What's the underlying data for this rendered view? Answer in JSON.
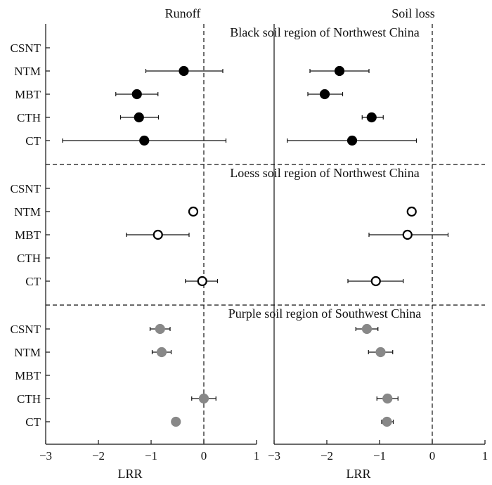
{
  "chart_data": {
    "type": "scatter",
    "subtype": "forest-plot",
    "x_axis_label": "LRR",
    "x_range": [
      -3,
      1
    ],
    "x_ticks": [
      "−3",
      "−2",
      "−1",
      "0",
      "1"
    ],
    "reference_line_x": 0,
    "panels": [
      {
        "title": "Runoff"
      },
      {
        "title": "Soil loss"
      }
    ],
    "categories": [
      "CSNT",
      "NTM",
      "MBT",
      "CTH",
      "CT"
    ],
    "regions": [
      {
        "name": "Black soil region of Northwest China",
        "marker_fill": "#000000",
        "marker_stroke": "#000000",
        "points": {
          "runoff": [
            {
              "category": "NTM",
              "mean": -0.38,
              "low": -1.1,
              "high": 0.36
            },
            {
              "category": "MBT",
              "mean": -1.27,
              "low": -1.67,
              "high": -0.87
            },
            {
              "category": "CTH",
              "mean": -1.23,
              "low": -1.58,
              "high": -0.86
            },
            {
              "category": "CT",
              "mean": -1.13,
              "low": -2.68,
              "high": 0.42
            }
          ],
          "soil_loss": [
            {
              "category": "NTM",
              "mean": -1.76,
              "low": -2.32,
              "high": -1.2
            },
            {
              "category": "MBT",
              "mean": -2.04,
              "low": -2.36,
              "high": -1.7
            },
            {
              "category": "CTH",
              "mean": -1.15,
              "low": -1.33,
              "high": -0.93
            },
            {
              "category": "CT",
              "mean": -1.52,
              "low": -2.75,
              "high": -0.3
            }
          ]
        }
      },
      {
        "name": "Loess soil region of Northwest China",
        "marker_fill": "#ffffff",
        "marker_stroke": "#000000",
        "points": {
          "runoff": [
            {
              "category": "NTM",
              "mean": -0.2,
              "low": -0.25,
              "high": -0.15
            },
            {
              "category": "MBT",
              "mean": -0.87,
              "low": -1.47,
              "high": -0.28
            },
            {
              "category": "CT",
              "mean": -0.03,
              "low": -0.35,
              "high": 0.26
            }
          ],
          "soil_loss": [
            {
              "category": "NTM",
              "mean": -0.39,
              "low": -0.44,
              "high": -0.34
            },
            {
              "category": "MBT",
              "mean": -0.47,
              "low": -1.2,
              "high": 0.3
            },
            {
              "category": "CT",
              "mean": -1.07,
              "low": -1.6,
              "high": -0.55
            }
          ]
        }
      },
      {
        "name": "Purple soil region of Southwest China",
        "marker_fill": "#888888",
        "marker_stroke": "#888888",
        "points": {
          "runoff": [
            {
              "category": "CSNT",
              "mean": -0.83,
              "low": -1.02,
              "high": -0.64
            },
            {
              "category": "NTM",
              "mean": -0.8,
              "low": -0.98,
              "high": -0.62
            },
            {
              "category": "CTH",
              "mean": 0.0,
              "low": -0.23,
              "high": 0.23
            },
            {
              "category": "CT",
              "mean": -0.53,
              "low": -0.57,
              "high": -0.49
            }
          ],
          "soil_loss": [
            {
              "category": "CSNT",
              "mean": -1.24,
              "low": -1.45,
              "high": -1.03
            },
            {
              "category": "NTM",
              "mean": -0.98,
              "low": -1.21,
              "high": -0.75
            },
            {
              "category": "CTH",
              "mean": -0.85,
              "low": -1.05,
              "high": -0.65
            },
            {
              "category": "CT",
              "mean": -0.86,
              "low": -0.96,
              "high": -0.74
            }
          ]
        }
      }
    ]
  }
}
